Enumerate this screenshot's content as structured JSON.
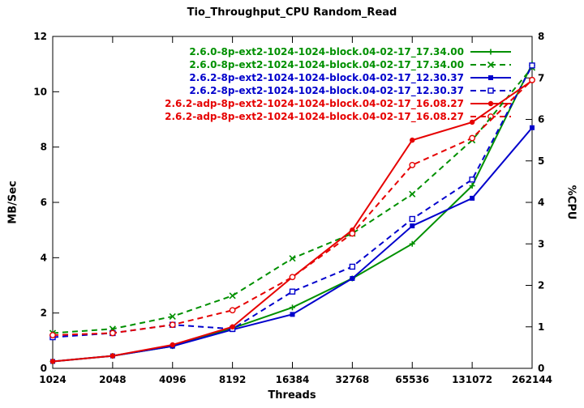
{
  "chart_data": {
    "type": "line",
    "title": "Tio_Throughput_CPU Random_Read",
    "xlabel": "Threads",
    "ylabel_left": "MB/Sec",
    "ylabel_right": "%CPU",
    "x_categories": [
      "1024",
      "2048",
      "4096",
      "8192",
      "16384",
      "32768",
      "65536",
      "131072",
      "262144"
    ],
    "ylim_left": [
      0,
      12
    ],
    "ylim_right": [
      0,
      8
    ],
    "yticks_left": [
      0,
      2,
      4,
      6,
      8,
      10,
      12
    ],
    "yticks_right": [
      0,
      1,
      2,
      3,
      4,
      5,
      6,
      7,
      8
    ],
    "grid": false,
    "legend_position": "top-center-inside",
    "series": [
      {
        "name": "2.6.0-8p-ext2-1024-1024-block.04-02-17_17.34.00",
        "axis": "left",
        "unit": "MB/Sec",
        "color": "#009000",
        "style": "solid",
        "marker": "plus",
        "values": [
          0.25,
          0.45,
          0.8,
          1.45,
          2.2,
          3.25,
          4.5,
          6.6,
          11.0
        ]
      },
      {
        "name": "2.6.0-8p-ext2-1024-1024-block.04-02-17_17.34.00",
        "axis": "right",
        "unit": "%CPU",
        "color": "#009000",
        "style": "dashed",
        "marker": "cross",
        "values": [
          0.85,
          0.95,
          1.25,
          1.75,
          2.65,
          3.25,
          4.2,
          5.5,
          7.25
        ]
      },
      {
        "name": "2.6.2-8p-ext2-1024-1024-block.04-02-17_12.30.37",
        "axis": "left",
        "unit": "MB/Sec",
        "color": "#0000cc",
        "style": "solid",
        "marker": "square",
        "values": [
          0.25,
          0.45,
          0.8,
          1.4,
          1.95,
          3.25,
          5.15,
          6.15,
          8.7
        ]
      },
      {
        "name": "2.6.2-8p-ext2-1024-1024-block.04-02-17_12.30.37",
        "axis": "right",
        "unit": "%CPU",
        "color": "#0000cc",
        "style": "dashed",
        "marker": "square-open",
        "values": [
          0.75,
          0.85,
          1.05,
          0.95,
          1.85,
          2.45,
          3.6,
          4.55,
          7.3
        ]
      },
      {
        "name": "2.6.2-adp-8p-ext2-1024-1024-block.04-02-17_16.08.27",
        "axis": "left",
        "unit": "MB/Sec",
        "color": "#e60000",
        "style": "solid",
        "marker": "circle",
        "values": [
          0.25,
          0.45,
          0.85,
          1.5,
          3.3,
          5.0,
          8.25,
          8.9,
          10.4
        ]
      },
      {
        "name": "2.6.2-adp-8p-ext2-1024-1024-block.04-02-17_16.08.27",
        "axis": "right",
        "unit": "%CPU",
        "color": "#e60000",
        "style": "dashed",
        "marker": "circle-open",
        "values": [
          0.8,
          0.85,
          1.05,
          1.4,
          2.2,
          3.25,
          4.9,
          5.55,
          6.95
        ]
      }
    ]
  }
}
